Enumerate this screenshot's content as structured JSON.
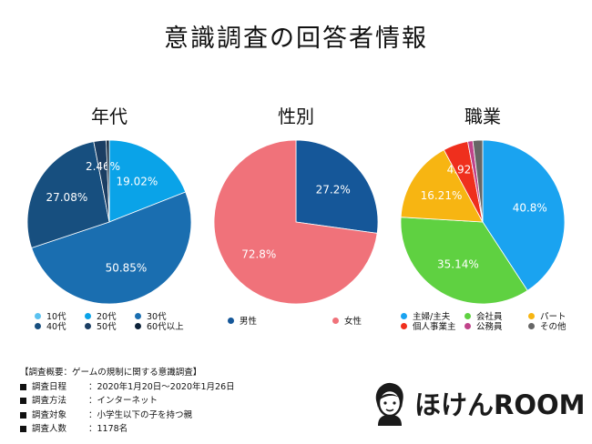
{
  "title": "意識調査の回答者情報",
  "chart_data": [
    {
      "type": "pie",
      "title": "年代",
      "categories": [
        "10代",
        "20代",
        "30代",
        "40代",
        "50代",
        "60代以上"
      ],
      "values": [
        0,
        19.02,
        50.85,
        27.08,
        2.46,
        0.59
      ],
      "labels": [
        "",
        "19.02%",
        "50.85%",
        "27.08%",
        "2.46%",
        ""
      ],
      "colors": [
        "#5bc2f0",
        "#0aa3e8",
        "#1a6eb0",
        "#174f7f",
        "#1b3e63",
        "#0d2238"
      ]
    },
    {
      "type": "pie",
      "title": "性別",
      "categories": [
        "男性",
        "女性"
      ],
      "values": [
        27.2,
        72.8
      ],
      "labels": [
        "27.2%",
        "72.8%"
      ],
      "colors": [
        "#155799",
        "#f0727a"
      ]
    },
    {
      "type": "pie",
      "title": "職業",
      "categories": [
        "主婦/主夫",
        "会社員",
        "パート",
        "個人事業主",
        "公務員",
        "その他"
      ],
      "values": [
        40.8,
        35.14,
        16.21,
        4.92,
        1.0,
        1.93
      ],
      "labels": [
        "40.8%",
        "35.14%",
        "16.21%",
        "4.92%",
        "",
        ""
      ],
      "colors": [
        "#1aa3f0",
        "#5fd141",
        "#f7b512",
        "#ef2f1d",
        "#c0438a",
        "#666666"
      ]
    }
  ],
  "survey": {
    "header": "【調査概要：ゲームの規制に関する意識調査】",
    "rows": [
      {
        "key": "調査日程",
        "value": "：2020年1月20日〜2020年1月26日"
      },
      {
        "key": "調査方法",
        "value": "：インターネット"
      },
      {
        "key": "調査対象",
        "value": "：小学生以下の子を持つ親"
      },
      {
        "key": "調査人数",
        "value": "：1178名"
      }
    ]
  },
  "logo": {
    "text": "ほけんROOM",
    "icon": "person-face-icon"
  }
}
